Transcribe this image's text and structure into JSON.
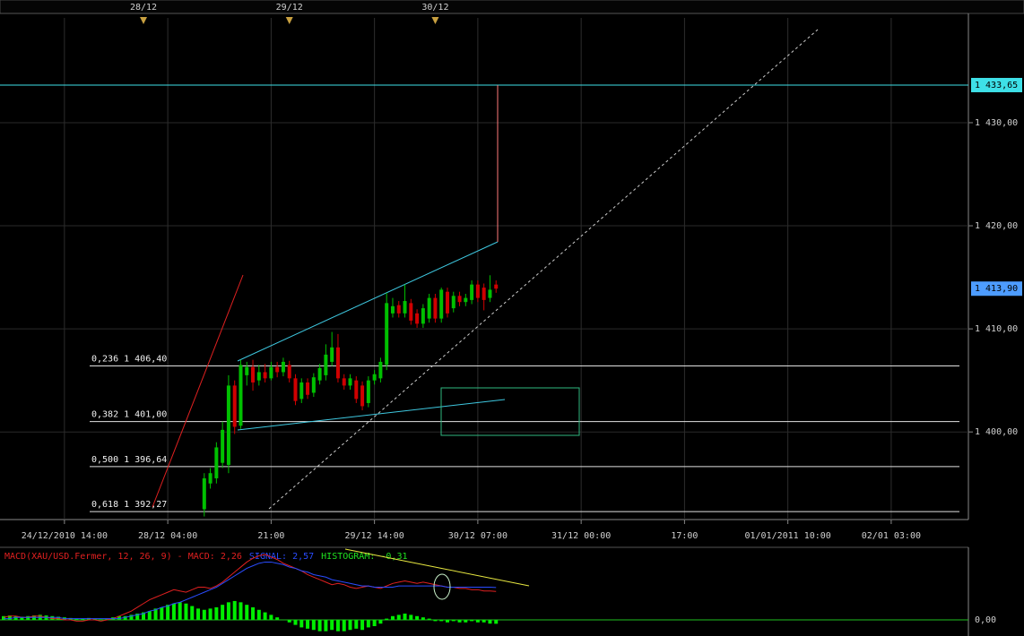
{
  "chart_data": [
    {
      "type": "candlestick",
      "xlim": [
        -0.6,
        158.7
      ],
      "xticks": [
        {
          "value": 10,
          "label": "24/12/2010 14:00"
        },
        {
          "value": 27,
          "label": "28/12 04:00"
        },
        {
          "value": 44,
          "label": "21:00"
        },
        {
          "value": 61,
          "label": "29/12 14:00"
        },
        {
          "value": 78,
          "label": "30/12 07:00"
        },
        {
          "value": 95,
          "label": "31/12 00:00"
        },
        {
          "value": 112,
          "label": "17:00"
        },
        {
          "value": 129,
          "label": "01/01/2011 10:00"
        },
        {
          "value": 146,
          "label": "02/01 03:00"
        }
      ],
      "top_ticks": [
        {
          "value": 23,
          "label": "28/12"
        },
        {
          "value": 47,
          "label": "29/12"
        },
        {
          "value": 71,
          "label": "30/12"
        }
      ],
      "ylim": [
        1391.5,
        1440.6
      ],
      "yticks": [
        {
          "value": 1400,
          "label": "1 400,00"
        },
        {
          "value": 1410,
          "label": "1 410,00"
        },
        {
          "value": 1420,
          "label": "1 420,00"
        },
        {
          "value": 1430,
          "label": "1 430,00"
        }
      ],
      "grid": true,
      "up_color": "#00c000",
      "down_color": "#d00000",
      "open": [
        null,
        null,
        null,
        null,
        null,
        null,
        null,
        null,
        null,
        null,
        null,
        null,
        null,
        null,
        null,
        null,
        null,
        null,
        null,
        null,
        null,
        null,
        null,
        null,
        null,
        null,
        null,
        null,
        null,
        null,
        null,
        null,
        null,
        1392.5,
        1395.0,
        1395.5,
        1397.0,
        1396.8,
        1404.5,
        1400.6,
        1405.5,
        1406.3,
        1405.0,
        1405.8,
        1405.2,
        1406.3,
        1405.8,
        1406.5,
        1405.2,
        1403.2,
        1404.8,
        1403.8,
        1405.0,
        1405.5,
        1406.8,
        1408.2,
        1405.2,
        1404.5,
        1405.0,
        1404.5,
        1402.8,
        1405.0,
        1405.2,
        1406.5,
        1411.5,
        1412.3,
        1411.5,
        1412.5,
        1411.5,
        1410.5,
        1411.0,
        1413.0,
        1411.0,
        1413.6,
        1412.0,
        1413.2,
        1412.6,
        1412.8,
        1414.3,
        1414.0,
        1413.0,
        1414.3
      ],
      "high": [
        null,
        null,
        null,
        null,
        null,
        null,
        null,
        null,
        null,
        null,
        null,
        null,
        null,
        null,
        null,
        null,
        null,
        null,
        null,
        null,
        null,
        null,
        null,
        null,
        null,
        null,
        null,
        null,
        null,
        null,
        null,
        null,
        null,
        1396.0,
        1396.5,
        1399.0,
        1401.0,
        1405.5,
        1405.0,
        1407.0,
        1406.8,
        1407.0,
        1406.5,
        1406.6,
        1406.8,
        1406.8,
        1407.2,
        1406.9,
        1405.6,
        1405.2,
        1405.2,
        1405.7,
        1406.6,
        1408.5,
        1409.7,
        1409.5,
        1405.6,
        1405.6,
        1405.4,
        1404.9,
        1405.4,
        1406.0,
        1407.2,
        1413.5,
        1413.0,
        1412.7,
        1414.3,
        1412.9,
        1411.9,
        1412.4,
        1413.4,
        1413.4,
        1414.0,
        1414.0,
        1413.6,
        1413.6,
        1413.4,
        1414.7,
        1414.7,
        1414.4,
        1415.2,
        1414.7
      ],
      "low": [
        null,
        null,
        null,
        null,
        null,
        null,
        null,
        null,
        null,
        null,
        null,
        null,
        null,
        null,
        null,
        null,
        null,
        null,
        null,
        null,
        null,
        null,
        null,
        null,
        null,
        null,
        null,
        null,
        null,
        null,
        null,
        null,
        null,
        1391.8,
        1394.5,
        1395.0,
        1396.5,
        1396.0,
        1399.8,
        1400.3,
        1404.5,
        1404.0,
        1404.5,
        1404.8,
        1405.0,
        1405.3,
        1405.4,
        1404.8,
        1402.6,
        1402.8,
        1403.2,
        1403.4,
        1404.6,
        1405.0,
        1406.4,
        1404.8,
        1404.1,
        1404.1,
        1402.8,
        1402.1,
        1402.4,
        1404.6,
        1404.8,
        1406.0,
        1411.1,
        1411.1,
        1411.1,
        1410.4,
        1410.1,
        1410.1,
        1410.6,
        1410.6,
        1410.6,
        1411.1,
        1411.6,
        1412.2,
        1412.2,
        1412.4,
        1412.6,
        1411.8,
        1412.6,
        1413.5
      ],
      "close": [
        null,
        null,
        null,
        null,
        null,
        null,
        null,
        null,
        null,
        null,
        null,
        null,
        null,
        null,
        null,
        null,
        null,
        null,
        null,
        null,
        null,
        null,
        null,
        null,
        null,
        null,
        null,
        null,
        null,
        null,
        null,
        null,
        null,
        1395.5,
        1396.0,
        1398.5,
        1400.2,
        1404.5,
        1400.5,
        1406.5,
        1406.3,
        1404.8,
        1405.8,
        1405.2,
        1406.3,
        1405.8,
        1406.8,
        1405.2,
        1403.0,
        1404.8,
        1403.6,
        1405.3,
        1406.2,
        1407.5,
        1408.2,
        1405.2,
        1404.5,
        1405.2,
        1403.2,
        1402.5,
        1405.0,
        1405.6,
        1406.8,
        1412.5,
        1412.2,
        1411.5,
        1412.7,
        1410.8,
        1410.5,
        1412.0,
        1413.0,
        1411.0,
        1413.8,
        1411.5,
        1413.2,
        1412.6,
        1413.0,
        1414.3,
        1413.0,
        1412.8,
        1413.8,
        1413.9
      ],
      "levels": [
        {
          "value": 1406.4,
          "label": "0,236 1 406,40"
        },
        {
          "value": 1401.0,
          "label": "0,382 1 401,00"
        },
        {
          "value": 1396.64,
          "label": "0,500 1 396,64"
        },
        {
          "value": 1392.27,
          "label": "0,618 1 392,27"
        }
      ],
      "price_lines": [
        {
          "value": 1433.65,
          "label": "1 433,65",
          "color": "#3ee0e8"
        }
      ],
      "last_price": {
        "value": 1413.9,
        "label": "1 413,90",
        "color": "#4d9cff"
      }
    },
    {
      "type": "line",
      "title_parts": [
        {
          "text": "MACD(XAU/USD.Fermer, 12, 26, 9) - MACD: 2,26",
          "color": "#e02020"
        },
        {
          "text": "SIGNAL: 2,57",
          "color": "#2a4cff"
        },
        {
          "text": "HISTOGRAM: -0,31",
          "color": "#20e020"
        }
      ],
      "ylim": [
        -1.14,
        5.7
      ],
      "yticks": [
        {
          "value": 0,
          "label": "0,00"
        }
      ],
      "series": [
        {
          "color": "#00ee00",
          "kind": "bar",
          "values": [
            0.3,
            0.35,
            0.3,
            0.25,
            0.3,
            0.35,
            0.4,
            0.35,
            0.3,
            0.25,
            0.2,
            0.15,
            0.1,
            0.1,
            0.15,
            0.1,
            0.05,
            0.1,
            0.2,
            0.3,
            0.3,
            0.4,
            0.5,
            0.6,
            0.7,
            0.9,
            1.0,
            1.2,
            1.3,
            1.4,
            1.3,
            1.1,
            0.9,
            0.8,
            0.9,
            1.0,
            1.2,
            1.4,
            1.5,
            1.4,
            1.2,
            1.0,
            0.8,
            0.6,
            0.4,
            0.2,
            0.0,
            -0.2,
            -0.4,
            -0.6,
            -0.7,
            -0.8,
            -0.9,
            -0.9,
            -0.8,
            -0.9,
            -0.9,
            -0.8,
            -0.7,
            -0.8,
            -0.6,
            -0.5,
            -0.3,
            0.1,
            0.3,
            0.4,
            0.5,
            0.4,
            0.3,
            0.2,
            0.1,
            -0.1,
            -0.1,
            -0.2,
            -0.1,
            -0.2,
            -0.2,
            -0.1,
            -0.2,
            -0.2,
            -0.3,
            -0.31
          ]
        },
        {
          "color": "#e02020",
          "kind": "line",
          "values": [
            0.2,
            0.3,
            0.3,
            0.2,
            0.2,
            0.3,
            0.3,
            0.2,
            0.1,
            0.1,
            0.0,
            0.0,
            -0.1,
            -0.1,
            0.0,
            0.0,
            -0.1,
            0.0,
            0.1,
            0.3,
            0.5,
            0.7,
            1.0,
            1.3,
            1.6,
            1.8,
            2.0,
            2.2,
            2.4,
            2.3,
            2.2,
            2.4,
            2.6,
            2.6,
            2.5,
            2.7,
            3.0,
            3.4,
            3.8,
            4.2,
            4.6,
            4.9,
            5.1,
            5.2,
            5.0,
            4.8,
            4.5,
            4.3,
            4.1,
            3.9,
            3.6,
            3.4,
            3.2,
            3.0,
            2.8,
            2.9,
            2.8,
            2.6,
            2.5,
            2.6,
            2.7,
            2.6,
            2.5,
            2.7,
            2.9,
            3.0,
            3.1,
            3.0,
            2.9,
            3.0,
            2.9,
            2.8,
            2.7,
            2.6,
            2.6,
            2.5,
            2.5,
            2.4,
            2.4,
            2.3,
            2.3,
            2.26
          ]
        },
        {
          "color": "#2a4cff",
          "kind": "line",
          "values": [
            0.1,
            0.1,
            0.2,
            0.2,
            0.2,
            0.2,
            0.2,
            0.2,
            0.2,
            0.2,
            0.1,
            0.1,
            0.1,
            0.1,
            0.1,
            0.1,
            0.1,
            0.1,
            0.1,
            0.1,
            0.2,
            0.3,
            0.4,
            0.5,
            0.7,
            0.8,
            1.0,
            1.1,
            1.3,
            1.4,
            1.6,
            1.8,
            2.0,
            2.2,
            2.4,
            2.6,
            2.9,
            3.2,
            3.5,
            3.8,
            4.1,
            4.3,
            4.5,
            4.6,
            4.6,
            4.5,
            4.4,
            4.2,
            4.1,
            3.9,
            3.8,
            3.6,
            3.5,
            3.4,
            3.2,
            3.1,
            3.0,
            2.9,
            2.8,
            2.7,
            2.7,
            2.6,
            2.6,
            2.6,
            2.6,
            2.7,
            2.7,
            2.7,
            2.7,
            2.7,
            2.7,
            2.7,
            2.7,
            2.6,
            2.6,
            2.6,
            2.6,
            2.6,
            2.6,
            2.6,
            2.6,
            2.57
          ]
        }
      ]
    }
  ]
}
